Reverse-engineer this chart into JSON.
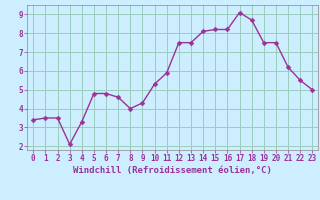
{
  "x": [
    0,
    1,
    2,
    3,
    4,
    5,
    6,
    7,
    8,
    9,
    10,
    11,
    12,
    13,
    14,
    15,
    16,
    17,
    18,
    19,
    20,
    21,
    22,
    23
  ],
  "y": [
    3.4,
    3.5,
    3.5,
    2.1,
    3.3,
    4.8,
    4.8,
    4.6,
    4.0,
    4.3,
    5.3,
    5.9,
    7.5,
    7.5,
    8.1,
    8.2,
    8.2,
    9.1,
    8.7,
    7.5,
    7.5,
    6.2,
    5.5,
    5.0
  ],
  "line_color": "#993399",
  "marker_color": "#993399",
  "bg_color": "#cceeff",
  "grid_color": "#99ccbb",
  "xlabel": "Windchill (Refroidissement éolien,°C)",
  "xlabel_color": "#993399",
  "ylim_min": 1.8,
  "ylim_max": 9.5,
  "yticks": [
    2,
    3,
    4,
    5,
    6,
    7,
    8,
    9
  ],
  "xticks": [
    0,
    1,
    2,
    3,
    4,
    5,
    6,
    7,
    8,
    9,
    10,
    11,
    12,
    13,
    14,
    15,
    16,
    17,
    18,
    19,
    20,
    21,
    22,
    23
  ],
  "tick_color": "#993399",
  "font_family": "monospace",
  "tick_fontsize": 5.5,
  "xlabel_fontsize": 6.5,
  "linewidth": 1.0,
  "markersize": 2.5
}
